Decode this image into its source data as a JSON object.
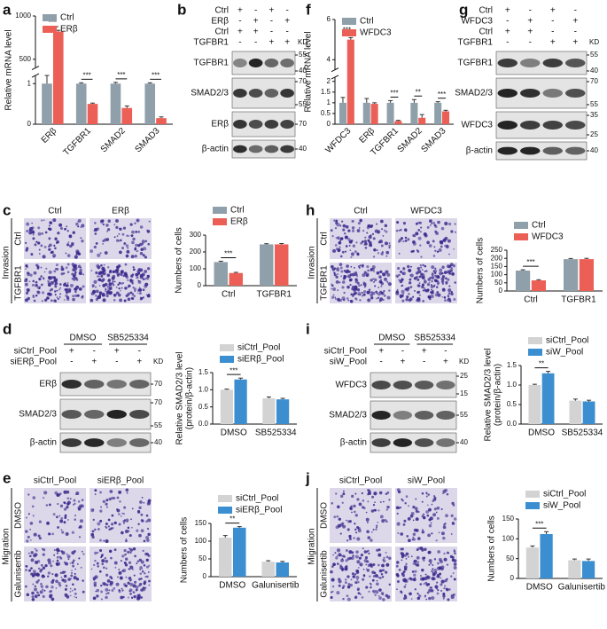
{
  "chart_data": [
    {
      "type": "bar",
      "panel": "a",
      "ylabel": "Relative mRNA level",
      "categories": [
        "ERβ",
        "TGFBR1",
        "SMAD2",
        "SMAD3"
      ],
      "series": [
        {
          "name": "Ctrl",
          "color": "#8fa0ab",
          "values": [
            1,
            1,
            1,
            1
          ],
          "errors": [
            0.2,
            0.02,
            0.03,
            0.02
          ]
        },
        {
          "name": "ERβ",
          "color": "#ec5f57",
          "values": [
            820,
            0.5,
            0.4,
            0.15
          ],
          "errors": [
            15,
            0.02,
            0.05,
            0.03
          ]
        }
      ],
      "annotations": [
        "***",
        "***",
        "***",
        "***"
      ],
      "ylim": [
        0,
        1000
      ],
      "axis_break": [
        1.2,
        400
      ],
      "yticks": [
        0,
        1,
        500,
        1000
      ],
      "legend": "upper left"
    },
    {
      "type": "bar",
      "panel": "f",
      "ylabel": "Relative mRNA level",
      "categories": [
        "WFDC3",
        "ERβ",
        "TGFBR1",
        "SMAD2",
        "SMAD3"
      ],
      "series": [
        {
          "name": "Ctrl",
          "color": "#8fa0ab",
          "values": [
            1,
            1,
            1,
            1,
            1
          ],
          "errors": [
            0.25,
            0.2,
            0.1,
            0.15,
            0.05
          ]
        },
        {
          "name": "WFDC3",
          "color": "#ec5f57",
          "values": [
            5,
            0.95,
            0.15,
            0.3,
            0.6
          ],
          "errors": [
            0.1,
            0.05,
            0.03,
            0.15,
            0.05
          ]
        }
      ],
      "annotations": [
        "***",
        null,
        "***",
        "**",
        "***"
      ],
      "ylim": [
        0,
        6
      ],
      "axis_break": [
        2.2,
        3.5
      ],
      "yticks": [
        0,
        0.5,
        1,
        1.5,
        2,
        4,
        6
      ],
      "legend": "upper left"
    },
    {
      "type": "bar",
      "ylabel": "Numbers of cells",
      "categories": [
        "Ctrl",
        "TGFBR1"
      ],
      "series": [
        {
          "name": "Ctrl",
          "color": "#8fa0ab",
          "values": [
            140,
            245
          ],
          "errors": [
            5,
            4
          ]
        },
        {
          "name": "ERβ",
          "color": "#ec5f57",
          "values": [
            75,
            245
          ],
          "errors": [
            4,
            5
          ]
        }
      ],
      "annotations": [
        "***",
        null
      ],
      "ylim": [
        0,
        300
      ],
      "yticks": [
        0,
        100,
        200,
        300
      ],
      "legend": "above"
    },
    {
      "type": "bar",
      "ylabel": "Numbers of cells",
      "categories": [
        "Ctrl",
        "TGFBR1"
      ],
      "series": [
        {
          "name": "Ctrl",
          "color": "#8fa0ab",
          "values": [
            125,
            195
          ],
          "errors": [
            5,
            4
          ]
        },
        {
          "name": "WFDC3",
          "color": "#ec5f57",
          "values": [
            65,
            195
          ],
          "errors": [
            4,
            5
          ]
        }
      ],
      "annotations": [
        "***",
        null
      ],
      "ylim": [
        0,
        250
      ],
      "yticks": [
        0,
        50,
        100,
        150,
        200,
        250
      ],
      "legend": "above"
    },
    {
      "type": "bar",
      "ylabel": [
        "Relative SMAD2/3 level",
        "(protein/β-actin)"
      ],
      "categories": [
        "DMSO",
        "SB525334"
      ],
      "series": [
        {
          "name": "siCtrl_Pool",
          "color": "#d3d3d3",
          "values": [
            1.0,
            0.75
          ],
          "errors": [
            0.02,
            0.04
          ]
        },
        {
          "name": "siERβ_Pool",
          "color": "#3b8fd1",
          "values": [
            1.3,
            0.72
          ],
          "errors": [
            0.04,
            0.03
          ]
        }
      ],
      "annotations": [
        "***",
        null
      ],
      "ylim": [
        0,
        1.5
      ],
      "yticks": [
        {
          "value": 0,
          "label": "0.0"
        },
        0.5,
        {
          "value": 1,
          "label": "1.0"
        },
        1.5
      ],
      "legend": "above"
    },
    {
      "type": "bar",
      "ylabel": [
        "Relative SMAD2/3 level",
        "(protein/β-actin)"
      ],
      "categories": [
        "DMSO",
        "SB525334"
      ],
      "series": [
        {
          "name": "siCtrl_Pool",
          "color": "#d3d3d3",
          "values": [
            1.0,
            0.6
          ],
          "errors": [
            0.02,
            0.04
          ]
        },
        {
          "name": "siW_Pool",
          "color": "#3b8fd1",
          "values": [
            1.3,
            0.58
          ],
          "errors": [
            0.05,
            0.03
          ]
        }
      ],
      "annotations": [
        "**",
        null
      ],
      "ylim": [
        0,
        1.5
      ],
      "yticks": [
        {
          "value": 0,
          "label": "0.0"
        },
        0.5,
        {
          "value": 1,
          "label": "1.0"
        },
        1.5
      ],
      "legend": "above"
    },
    {
      "type": "bar",
      "ylabel": "Numbers of cells",
      "categories": [
        "DMSO",
        "Galunisertib"
      ],
      "series": [
        {
          "name": "siCtrl_Pool",
          "color": "#d3d3d3",
          "values": [
            110,
            42
          ],
          "errors": [
            6,
            3
          ]
        },
        {
          "name": "siERβ_Pool",
          "color": "#3b8fd1",
          "values": [
            138,
            40
          ],
          "errors": [
            3,
            3
          ]
        }
      ],
      "annotations": [
        "**",
        null
      ],
      "ylim": [
        0,
        150
      ],
      "yticks": [
        0,
        50,
        100,
        150
      ],
      "legend": "above"
    },
    {
      "type": "bar",
      "ylabel": "Numbers of cells",
      "categories": [
        "DMSO",
        "Galunisertib"
      ],
      "series": [
        {
          "name": "siCtrl_Pool",
          "color": "#d3d3d3",
          "values": [
            78,
            46
          ],
          "errors": [
            4,
            3
          ]
        },
        {
          "name": "siW_Pool",
          "color": "#3b8fd1",
          "values": [
            112,
            44
          ],
          "errors": [
            6,
            5
          ]
        }
      ],
      "annotations": [
        "***",
        null
      ],
      "ylim": [
        0,
        150
      ],
      "yticks": [
        0,
        50,
        100,
        150
      ],
      "legend": "above"
    }
  ],
  "blots": [
    {
      "panel": "b",
      "kd_label": "KD",
      "conditions": [
        {
          "name": "Ctrl",
          "signs": [
            "+",
            "-",
            "+",
            "-"
          ]
        },
        {
          "name": "ERβ",
          "signs": [
            "-",
            "+",
            "-",
            "+"
          ]
        },
        {
          "name": "Ctrl",
          "signs": [
            "+",
            "+",
            "-",
            "-"
          ]
        },
        {
          "name": "TGFBR1",
          "signs": [
            "-",
            "-",
            "+",
            "+"
          ]
        }
      ],
      "bands": [
        {
          "name": "TGFBR1",
          "kd": [
            55,
            40
          ]
        },
        {
          "name": "SMAD2/3",
          "kd": [
            70,
            55
          ]
        },
        {
          "name": "ERβ",
          "kd": [
            70
          ]
        },
        {
          "name": "β-actin",
          "kd": [
            40
          ]
        }
      ]
    },
    {
      "panel": "g",
      "kd_label": "KD",
      "conditions": [
        {
          "name": "Ctrl",
          "signs": [
            "+",
            "-",
            "+",
            "-"
          ]
        },
        {
          "name": "WFDC3",
          "signs": [
            "-",
            "+",
            "-",
            "+"
          ]
        },
        {
          "name": "Ctrl",
          "signs": [
            "+",
            "+",
            "-",
            "-"
          ]
        },
        {
          "name": "TGFBR1",
          "signs": [
            "-",
            "-",
            "+",
            "+"
          ]
        }
      ],
      "bands": [
        {
          "name": "TGFBR1",
          "kd": [
            55,
            40
          ]
        },
        {
          "name": "SMAD2/3",
          "kd": [
            70,
            55
          ]
        },
        {
          "name": "WFDC3",
          "kd": [
            35,
            25
          ]
        },
        {
          "name": "β-actin",
          "kd": [
            40
          ]
        }
      ]
    },
    {
      "panel": "d",
      "kd_label": "KD",
      "groups": [
        "DMSO",
        "SB525334"
      ],
      "conditions": [
        {
          "name": "siCtrl_Pool",
          "signs": [
            "+",
            "-",
            "+",
            "-"
          ]
        },
        {
          "name": "siERβ_Pool",
          "signs": [
            "-",
            "+",
            "-",
            "+"
          ]
        }
      ],
      "bands": [
        {
          "name": "ERβ",
          "kd": [
            70
          ]
        },
        {
          "name": "SMAD2/3",
          "kd": [
            70,
            55
          ]
        },
        {
          "name": "β-actin",
          "kd": [
            40
          ]
        }
      ]
    },
    {
      "panel": "i",
      "kd_label": "KD",
      "groups": [
        "DMSO",
        "SB525334"
      ],
      "conditions": [
        {
          "name": "siCtrl_Pool",
          "signs": [
            "+",
            "-",
            "+",
            "-"
          ]
        },
        {
          "name": "siW_Pool",
          "signs": [
            "-",
            "+",
            "-",
            "+"
          ]
        }
      ],
      "bands": [
        {
          "name": "WFDC3",
          "kd": [
            25,
            15
          ]
        },
        {
          "name": "SMAD2/3",
          "kd": [
            55
          ]
        },
        {
          "name": "β-actin",
          "kd": [
            40
          ]
        }
      ]
    }
  ],
  "micrographs": [
    {
      "panel": "c",
      "assay": "Invasion",
      "columns": [
        "Ctrl",
        "ERβ"
      ],
      "rows": [
        "Ctrl",
        "TGFBR1"
      ]
    },
    {
      "panel": "h",
      "assay": "Invasion",
      "columns": [
        "Ctrl",
        "WFDC3"
      ],
      "rows": [
        "Ctrl",
        "TGFBR1"
      ]
    },
    {
      "panel": "e",
      "assay": "Migration",
      "columns": [
        "siCtrl_Pool",
        "siERβ_Pool"
      ],
      "rows": [
        "DMSO",
        "Galunisertib"
      ]
    },
    {
      "panel": "j",
      "assay": "Migration",
      "columns": [
        "siCtrl_Pool",
        "siW_Pool"
      ],
      "rows": [
        "DMSO",
        "Galunisertib"
      ]
    }
  ]
}
